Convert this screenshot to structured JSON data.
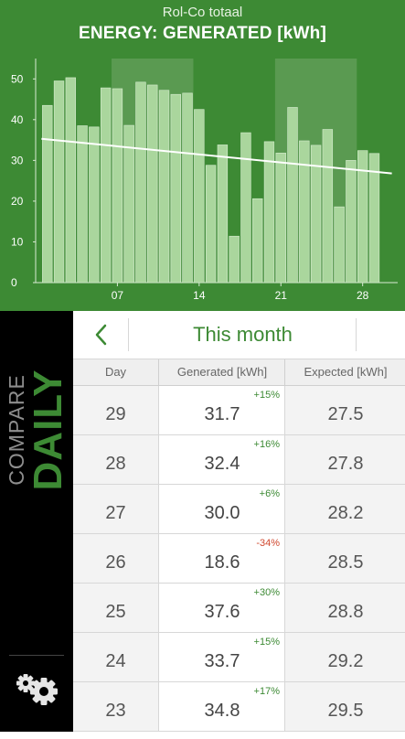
{
  "header": {
    "subtitle": "Rol-Co totaal",
    "title": "ENERGY: GENERATED [kWh]"
  },
  "chart_data": {
    "type": "bar",
    "x": [
      1,
      2,
      3,
      4,
      5,
      6,
      7,
      8,
      9,
      10,
      11,
      12,
      13,
      14,
      15,
      16,
      17,
      18,
      19,
      20,
      21,
      22,
      23,
      24,
      25,
      26,
      27,
      28,
      29
    ],
    "values": [
      43.5,
      49.5,
      50.3,
      38.5,
      38.2,
      47.8,
      47.6,
      38.6,
      49.2,
      48.5,
      47.2,
      46.2,
      46.5,
      42.5,
      28.8,
      33.8,
      11.4,
      36.8,
      20.6,
      34.6,
      31.8,
      43.0,
      34.8,
      33.7,
      37.6,
      18.6,
      30.0,
      32.4,
      31.7
    ],
    "trend": {
      "start": 35.3,
      "end": 26.8
    },
    "xticks": [
      "07",
      "14",
      "21",
      "28"
    ],
    "xtick_values": [
      7,
      14,
      21,
      28
    ],
    "yticks": [
      "0",
      "10",
      "20",
      "30",
      "40",
      "50"
    ],
    "ylim": [
      0,
      55
    ],
    "xlim": [
      0,
      31
    ],
    "highlight_ranges": [
      [
        7,
        13
      ],
      [
        21,
        27
      ]
    ],
    "grid": false,
    "colors": {
      "bar": "#aad69d",
      "trend": "#ffffff",
      "background": "#3d8a34",
      "highlight": "#6ea565"
    }
  },
  "sidebar": {
    "compare": "COMPARE",
    "daily": "DAILY",
    "settings_icon": "gear-icon"
  },
  "nav": {
    "back_icon": "chevron-left-icon",
    "month_label": "This month"
  },
  "table": {
    "headers": [
      "Day",
      "Generated [kWh]",
      "Expected [kWh]"
    ],
    "rows": [
      {
        "day": "29",
        "generated": "31.7",
        "pct": "+15%",
        "expected": "27.5"
      },
      {
        "day": "28",
        "generated": "32.4",
        "pct": "+16%",
        "expected": "27.8"
      },
      {
        "day": "27",
        "generated": "30.0",
        "pct": "+6%",
        "expected": "28.2"
      },
      {
        "day": "26",
        "generated": "18.6",
        "pct": "-34%",
        "expected": "28.5"
      },
      {
        "day": "25",
        "generated": "37.6",
        "pct": "+30%",
        "expected": "28.8"
      },
      {
        "day": "24",
        "generated": "33.7",
        "pct": "+15%",
        "expected": "29.2"
      },
      {
        "day": "23",
        "generated": "34.8",
        "pct": "+17%",
        "expected": "29.5"
      }
    ]
  },
  "colors": {
    "brand_green": "#3d8a34",
    "negative": "#d0482e"
  }
}
